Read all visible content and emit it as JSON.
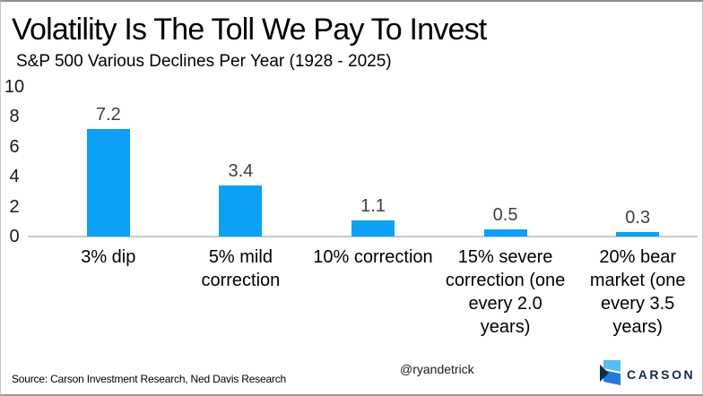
{
  "chart_data": {
    "type": "bar",
    "title": "Volatility Is The Toll We Pay To Invest",
    "subtitle": "S&P 500 Various Declines Per Year (1928 - 2025)",
    "categories": [
      "3% dip",
      "5% mild\ncorrection",
      "10% correction",
      "15% severe\ncorrection (one\nevery 2.0\nyears)",
      "20% bear\nmarket (one\nevery 3.5\nyears)"
    ],
    "values": [
      7.2,
      3.4,
      1.1,
      0.5,
      0.3
    ],
    "value_labels": [
      "7.2",
      "3.4",
      "1.1",
      "0.5",
      "0.3"
    ],
    "yticks": [
      10,
      8,
      6,
      4,
      2,
      0
    ],
    "ylim": [
      0,
      10
    ],
    "xlabel": "",
    "ylabel": "",
    "grid": false,
    "legend": "none",
    "bar_color": "#0ea0f5",
    "value_label_color": "#3f3f3f",
    "axis_line_color": "#c9c9c9"
  },
  "footer": {
    "source": "Source: Carson Investment Research, Ned Davis Research",
    "handle": "@ryandetrick",
    "logo_text": "CARSON",
    "logo_colors": {
      "light_blue": "#56bff0",
      "blue": "#2579df",
      "navy": "#16294a"
    }
  }
}
